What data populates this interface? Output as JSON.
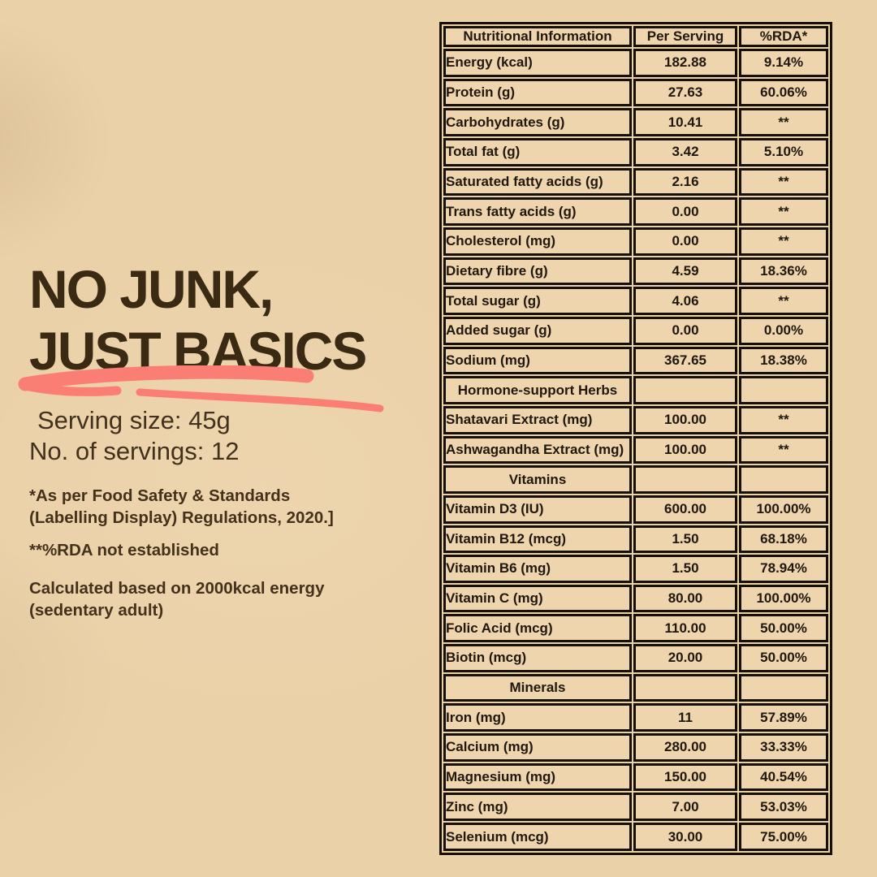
{
  "colors": {
    "background": "#ebd1a8",
    "cell_background": "#eed5ae",
    "table_border": "#15100a",
    "accent_maroon": "#8b3a2a",
    "title_brown": "#3a2a13",
    "body_text": "#44311b",
    "swoosh_pink": "#fb7e74"
  },
  "left_panel": {
    "title_line1": "NO JUNK,",
    "title_line2": "JUST BASICS",
    "underline_icon": "pink-marker-swoosh",
    "serving_size": "Serving size: 45g",
    "servings": "No. of servings: 12",
    "footnote1_line1": "*As per Food Safety & Standards",
    "footnote1_line2": "(Labelling Display) Regulations, 2020.]",
    "footnote2": "**%RDA not established",
    "footnote3_line1": "Calculated based on 2000kcal energy",
    "footnote3_line2": "(sedentary adult)"
  },
  "table": {
    "headers": [
      "Nutritional Information",
      "Per Serving",
      "%RDA*"
    ],
    "rows": [
      {
        "type": "data",
        "label": "Energy (kcal)",
        "per_serving": "182.88",
        "rda": "9.14%"
      },
      {
        "type": "data",
        "label": "Protein (g)",
        "per_serving": "27.63",
        "rda": "60.06%"
      },
      {
        "type": "data",
        "label": "Carbohydrates (g)",
        "per_serving": "10.41",
        "rda": "**"
      },
      {
        "type": "data",
        "label": "Total fat (g)",
        "per_serving": "3.42",
        "rda": "5.10%"
      },
      {
        "type": "data",
        "label": "Saturated fatty acids (g)",
        "per_serving": "2.16",
        "rda": "**"
      },
      {
        "type": "data",
        "label": "Trans fatty acids (g)",
        "per_serving": "0.00",
        "rda": "**"
      },
      {
        "type": "data",
        "label": "Cholesterol (mg)",
        "per_serving": "0.00",
        "rda": "**"
      },
      {
        "type": "data",
        "label": "Dietary fibre (g)",
        "per_serving": "4.59",
        "rda": "18.36%"
      },
      {
        "type": "data",
        "label": "Total sugar (g)",
        "per_serving": "4.06",
        "rda": "**"
      },
      {
        "type": "data",
        "label": "Added sugar (g)",
        "per_serving": "0.00",
        "rda": "0.00%"
      },
      {
        "type": "data",
        "label": "Sodium (mg)",
        "per_serving": "367.65",
        "rda": "18.38%"
      },
      {
        "type": "section",
        "label": "Hormone-support Herbs",
        "per_serving": "",
        "rda": ""
      },
      {
        "type": "data",
        "label": "Shatavari Extract (mg)",
        "per_serving": "100.00",
        "rda": "**"
      },
      {
        "type": "data",
        "label": "Ashwagandha Extract (mg)",
        "per_serving": "100.00",
        "rda": "**"
      },
      {
        "type": "section",
        "label": "Vitamins",
        "per_serving": "",
        "rda": ""
      },
      {
        "type": "data",
        "label": "Vitamin D3 (IU)",
        "per_serving": "600.00",
        "rda": "100.00%"
      },
      {
        "type": "data",
        "label": "Vitamin B12 (mcg)",
        "per_serving": "1.50",
        "rda": "68.18%"
      },
      {
        "type": "data",
        "label": "Vitamin B6 (mg)",
        "per_serving": "1.50",
        "rda": "78.94%"
      },
      {
        "type": "data",
        "label": "Vitamin C (mg)",
        "per_serving": "80.00",
        "rda": "100.00%"
      },
      {
        "type": "data",
        "label": "Folic Acid (mcg)",
        "per_serving": "110.00",
        "rda": "50.00%"
      },
      {
        "type": "data",
        "label": "Biotin (mcg)",
        "per_serving": "20.00",
        "rda": "50.00%"
      },
      {
        "type": "section",
        "label": "Minerals",
        "per_serving": "",
        "rda": ""
      },
      {
        "type": "data",
        "label": "Iron (mg)",
        "per_serving": "11",
        "rda": "57.89%"
      },
      {
        "type": "data",
        "label": "Calcium (mg)",
        "per_serving": "280.00",
        "rda": "33.33%"
      },
      {
        "type": "data",
        "label": "Magnesium (mg)",
        "per_serving": "150.00",
        "rda": "40.54%"
      },
      {
        "type": "data",
        "label": "Zinc (mg)",
        "per_serving": "7.00",
        "rda": "53.03%"
      },
      {
        "type": "data",
        "label": "Selenium (mcg)",
        "per_serving": "30.00",
        "rda": "75.00%"
      }
    ]
  }
}
